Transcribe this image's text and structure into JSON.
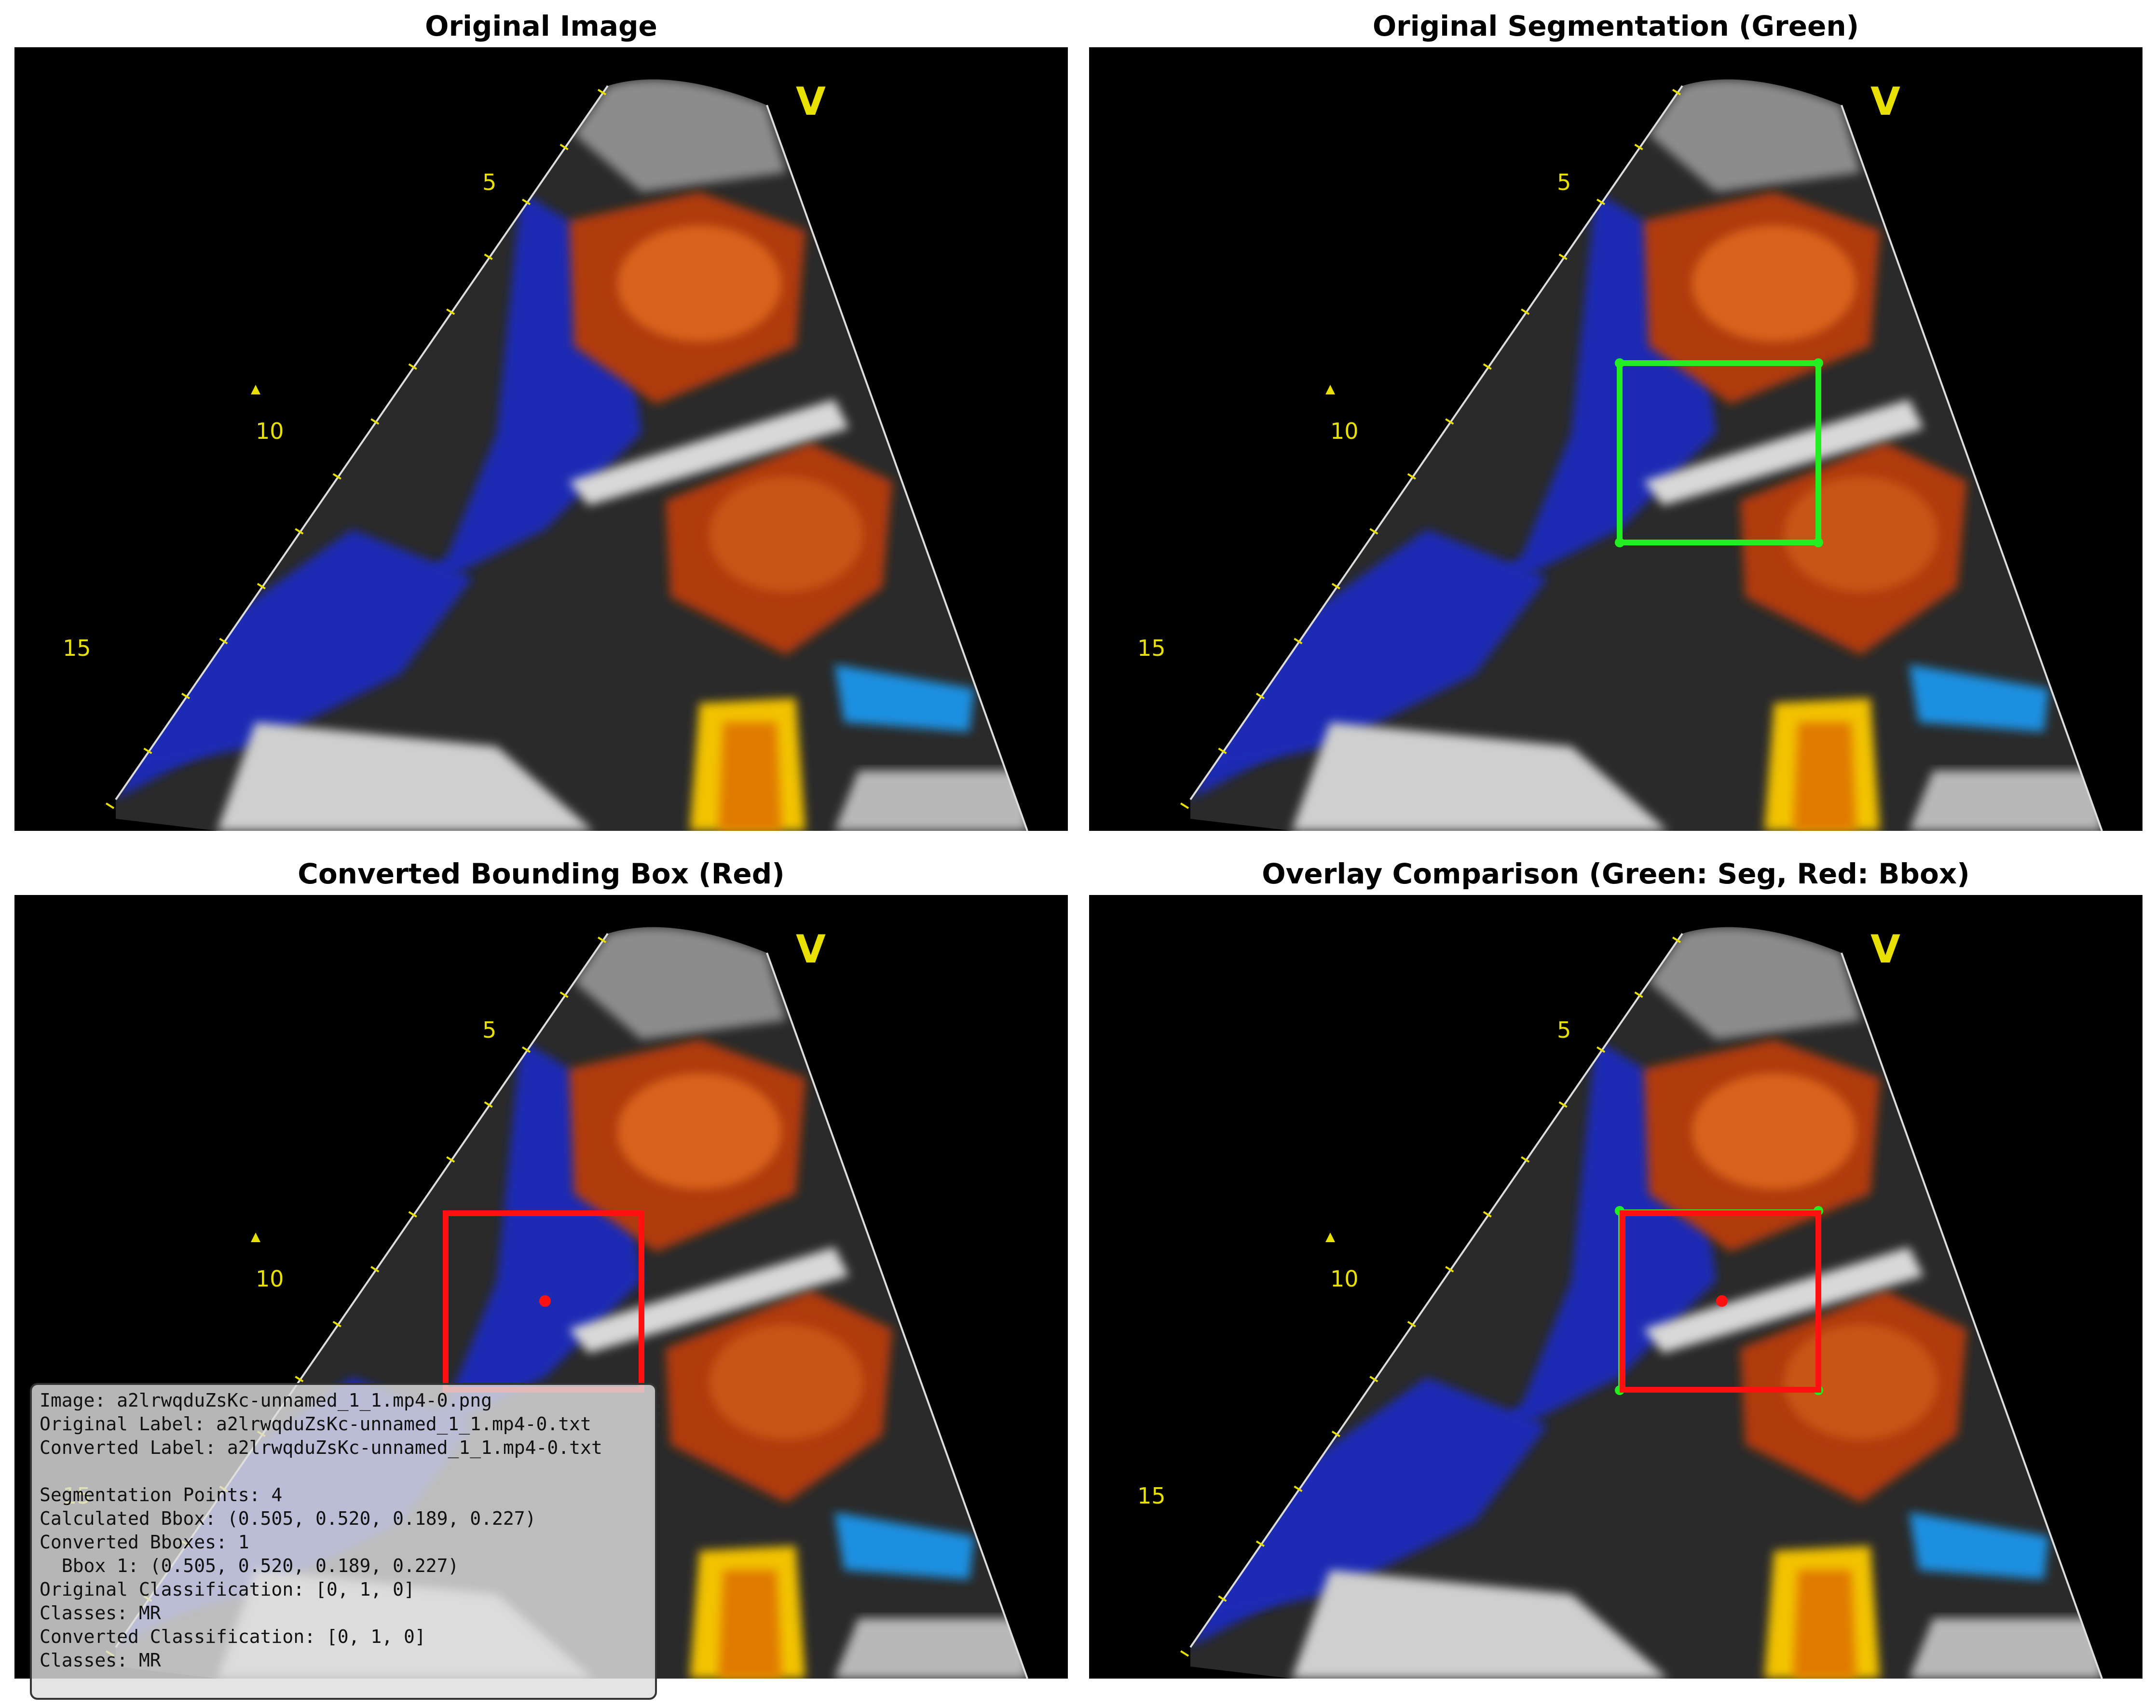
{
  "titles": {
    "p1": "Original Image",
    "p2": "Original Segmentation (Green)",
    "p3": "Converted Bounding Box (Red)",
    "p4": "Overlay Comparison (Green: Seg, Red: Bbox)"
  },
  "scan": {
    "probe_marker": "V",
    "depth_labels": [
      "5",
      "10",
      "15"
    ],
    "colors": {
      "background": "#000000",
      "red_flow": "#b03a10",
      "blue_flow": "#1c2cb4",
      "tissue": "#9a9a9a",
      "jet_yellow": "#f2c200",
      "seg_green": "#22ee22",
      "bbox_red": "#ff1111",
      "label_yellow": "#e8e000"
    }
  },
  "info": {
    "image": "Image: a2lrwqduZsKc-unnamed_1_1.mp4-0.png",
    "original_label": "Original Label: a2lrwqduZsKc-unnamed_1_1.mp4-0.txt",
    "converted_label": "Converted Label: a2lrwqduZsKc-unnamed_1_1.mp4-0.txt",
    "seg_points": "Segmentation Points: 4",
    "calc_bbox": "Calculated Bbox: (0.505, 0.520, 0.189, 0.227)",
    "converted_bboxes": "Converted Bboxes: 1",
    "bbox1": "  Bbox 1: (0.505, 0.520, 0.189, 0.227)",
    "orig_class": "Original Classification: [0, 1, 0]",
    "classes1": "Classes: MR",
    "conv_class": "Converted Classification: [0, 1, 0]",
    "classes2": "Classes: MR"
  }
}
